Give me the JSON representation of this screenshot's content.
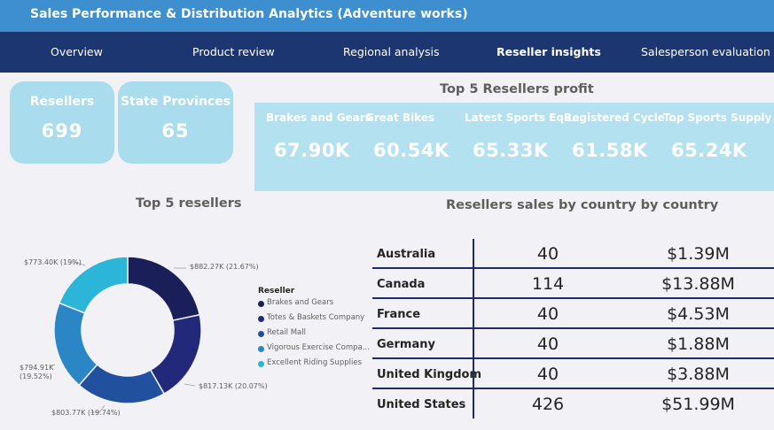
{
  "header": {
    "title": "Sales Performance & Distribution Analytics (Adventure works)"
  },
  "nav": {
    "tabs": [
      {
        "label": "Overview"
      },
      {
        "label": "Product review"
      },
      {
        "label": "Regional analysis"
      },
      {
        "label": "Reseller insights",
        "active": true
      },
      {
        "label": "Salesperson evaluation"
      }
    ]
  },
  "kpis": [
    {
      "label": "Resellers",
      "value": "699"
    },
    {
      "label": "State Provinces",
      "value": "65"
    }
  ],
  "top5_profit": {
    "title": "Top 5 Resellers profit",
    "items": [
      {
        "name": "Brakes and Gears",
        "value": "67.90K"
      },
      {
        "name": "Great Bikes",
        "value": "60.54K"
      },
      {
        "name": "Latest Sports Equ...",
        "value": "65.33K"
      },
      {
        "name": "Registered Cycle ...",
        "value": "61.58K"
      },
      {
        "name": "Top Sports Supply",
        "value": "65.24K"
      }
    ]
  },
  "donut": {
    "title": "Top 5 resellers",
    "legend_title": "Reseller",
    "slices": [
      {
        "name": "Brakes and Gears",
        "label": "$882.27K (21.67%)",
        "value": 882.27,
        "color": "#1a1f5a"
      },
      {
        "name": "Totes & Baskets Company",
        "label": "$817.13K (20.07%)",
        "value": 817.13,
        "color": "#23297a"
      },
      {
        "name": "Retail Mall",
        "label": "$803.77K (19.74%)",
        "value": 803.77,
        "color": "#21509e"
      },
      {
        "name": "Vigorous Exercise Compa...",
        "label": "$794.91K (19.52%)",
        "value": 794.91,
        "color": "#2b86c6"
      },
      {
        "name": "Excellent Riding Supplies",
        "label": "$773.40K (19%)",
        "value": 773.4,
        "color": "#2bb5d8"
      }
    ]
  },
  "country_table": {
    "title": "Resellers sales by country by country",
    "rows": [
      {
        "country": "Australia",
        "count": "40",
        "sales": "$1.39M"
      },
      {
        "country": "Canada",
        "count": "114",
        "sales": "$13.88M"
      },
      {
        "country": "France",
        "count": "40",
        "sales": "$4.53M"
      },
      {
        "country": "Germany",
        "count": "40",
        "sales": "$1.88M"
      },
      {
        "country": "United Kingdom",
        "count": "40",
        "sales": "$3.88M"
      },
      {
        "country": "United States",
        "count": "426",
        "sales": "$51.99M"
      }
    ]
  }
}
